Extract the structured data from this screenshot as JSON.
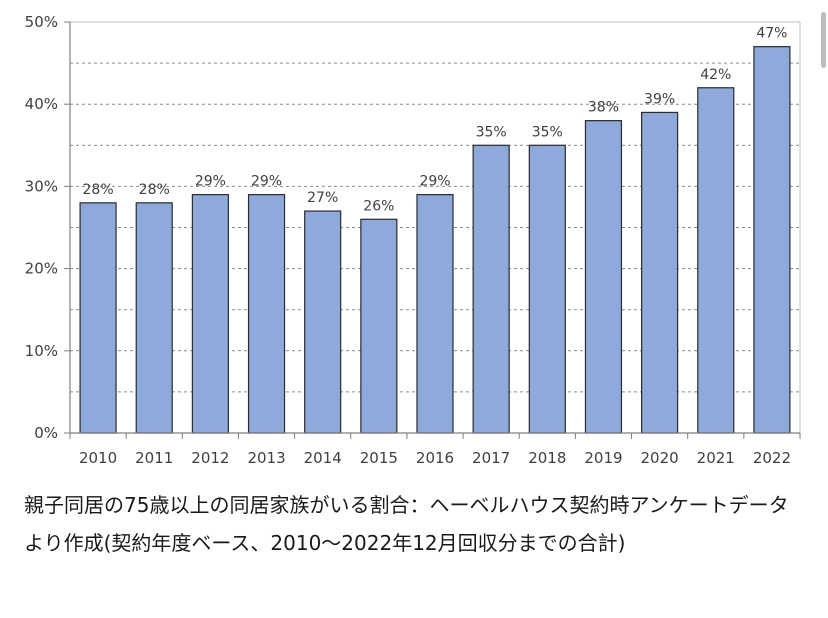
{
  "chart_data": {
    "type": "bar",
    "categories": [
      "2010",
      "2011",
      "2012",
      "2013",
      "2014",
      "2015",
      "2016",
      "2017",
      "2018",
      "2019",
      "2020",
      "2021",
      "2022"
    ],
    "series": [
      {
        "values": [
          28,
          28,
          29,
          29,
          27,
          26,
          29,
          35,
          35,
          38,
          39,
          42,
          47
        ],
        "labels": [
          "28%",
          "28%",
          "29%",
          "29%",
          "27%",
          "26%",
          "29%",
          "35%",
          "35%",
          "38%",
          "39%",
          "42%",
          "47%"
        ]
      }
    ],
    "yticks": [
      0,
      10,
      20,
      30,
      40,
      50
    ],
    "ytick_labels": [
      "0%",
      "10%",
      "20%",
      "30%",
      "40%",
      "50%"
    ],
    "ylim": [
      0,
      50
    ],
    "grid": "dashed horizontal lines at 5% intervals",
    "bar_color": "#8EA9DB",
    "bar_edge_color": "#2b2b2b",
    "axis_color": "#7f7f7f"
  },
  "caption": "親子同居の75歳以上の同居家族がいる割合：ヘーベルハウス契約時アンケートデータより作成(契約年度ベース、2010〜2022年12月回収分までの合計)"
}
